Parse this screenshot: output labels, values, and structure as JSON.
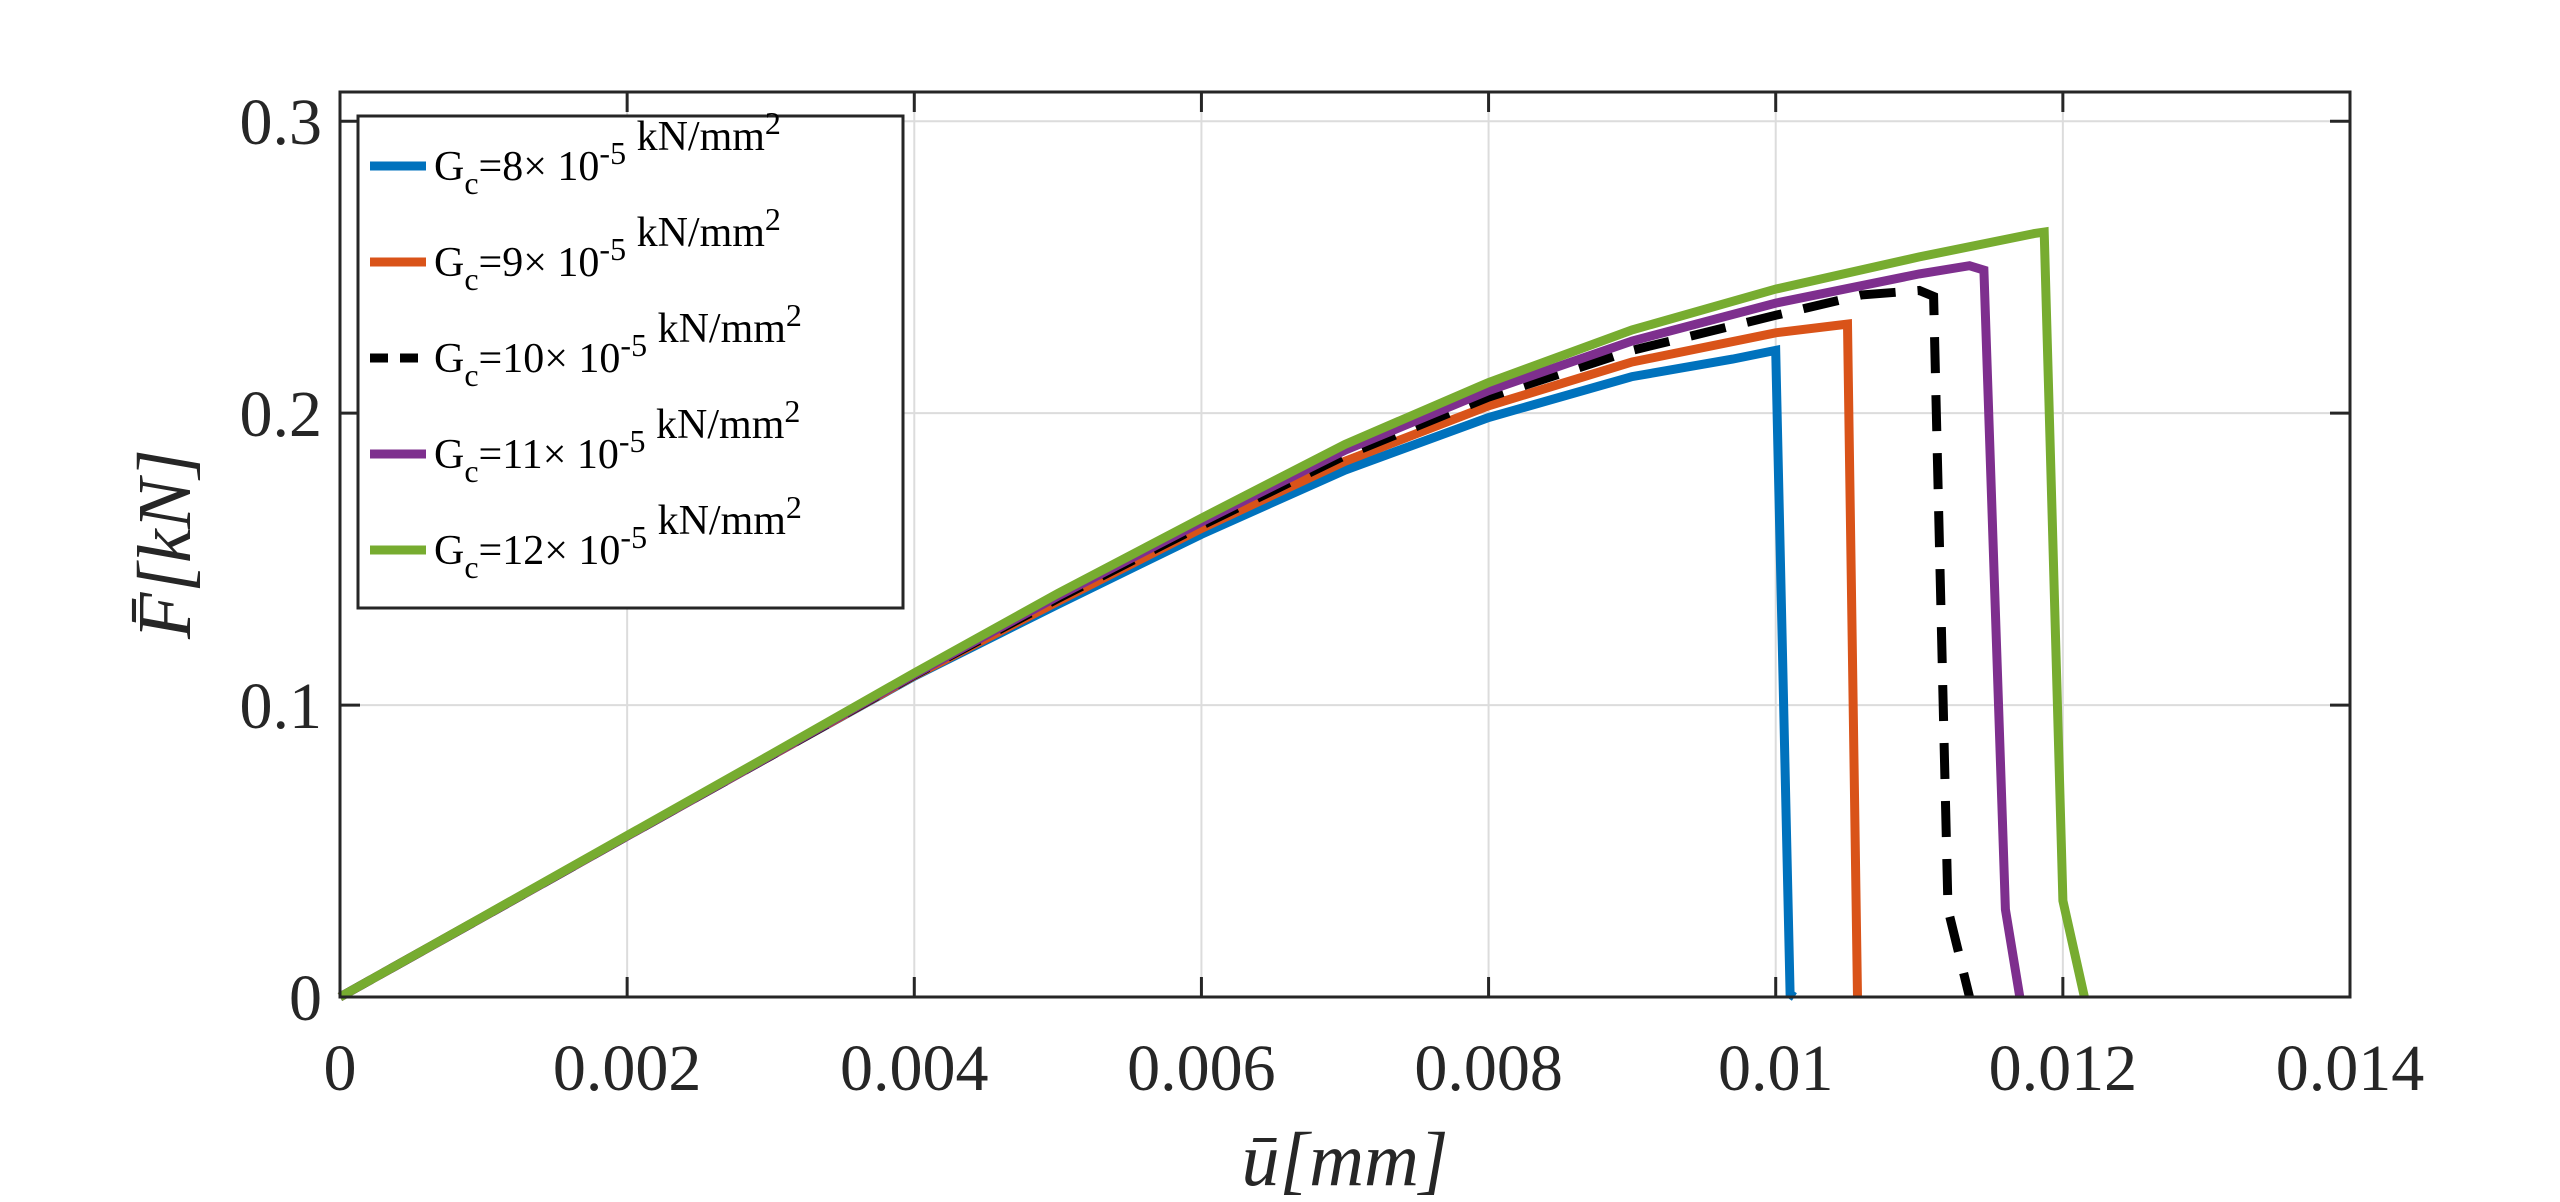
{
  "chart_data": {
    "type": "line",
    "title": "",
    "xlabel": "ū[mm]",
    "ylabel": "F̄[kN]",
    "xlim": [
      0,
      0.014
    ],
    "ylim": [
      0,
      0.31
    ],
    "xticks": [
      0,
      0.002,
      0.004,
      0.006,
      0.008,
      0.01,
      0.012,
      0.014
    ],
    "xtick_labels": [
      "0",
      "0.002",
      "0.004",
      "0.006",
      "0.008",
      "0.01",
      "0.012",
      "0.014"
    ],
    "yticks": [
      0,
      0.1,
      0.2,
      0.3
    ],
    "ytick_labels": [
      "0",
      "0.1",
      "0.2",
      "0.3"
    ],
    "grid": true,
    "legend_position": "top-left",
    "series": [
      {
        "name": "Gc=8× 10-5 kN/mm2",
        "legend": {
          "base": "G",
          "sub": "c",
          "coef": "=8",
          "times": "× 10",
          "exp": "-5",
          "unit": " kN/mm",
          "unit_exp": "2"
        },
        "color": "#0072BD",
        "dash": "solid",
        "x": [
          0,
          0.001,
          0.002,
          0.003,
          0.004,
          0.005,
          0.006,
          0.007,
          0.008,
          0.009,
          0.0097,
          0.01,
          0.0101,
          0.01013
        ],
        "y": [
          0,
          0.0275,
          0.0551,
          0.0826,
          0.1099,
          0.1345,
          0.1585,
          0.1805,
          0.1985,
          0.2125,
          0.2185,
          0.2215,
          0.001,
          0.0
        ]
      },
      {
        "name": "Gc=9× 10-5 kN/mm2",
        "legend": {
          "base": "G",
          "sub": "c",
          "coef": "=9",
          "times": "× 10",
          "exp": "-5",
          "unit": " kN/mm",
          "unit_exp": "2"
        },
        "color": "#D95319",
        "dash": "solid",
        "x": [
          0,
          0.001,
          0.002,
          0.003,
          0.004,
          0.005,
          0.006,
          0.007,
          0.008,
          0.009,
          0.01,
          0.0105,
          0.01057
        ],
        "y": [
          0,
          0.0275,
          0.0551,
          0.0826,
          0.1101,
          0.1355,
          0.1605,
          0.1835,
          0.2025,
          0.2175,
          0.2275,
          0.2305,
          0.0
        ]
      },
      {
        "name": "Gc=10× 10-5 kN/mm2",
        "legend": {
          "base": "G",
          "sub": "c",
          "coef": "=10",
          "times": "× 10",
          "exp": "-5",
          "unit": " kN/mm",
          "unit_exp": "2"
        },
        "color": "#000000",
        "dash": "dashed",
        "x": [
          0,
          0.001,
          0.002,
          0.003,
          0.004,
          0.005,
          0.006,
          0.007,
          0.008,
          0.009,
          0.01,
          0.0106,
          0.011,
          0.0111,
          0.0112,
          0.01135
        ],
        "y": [
          0,
          0.0275,
          0.0551,
          0.0826,
          0.1103,
          0.1365,
          0.1615,
          0.1855,
          0.2055,
          0.2215,
          0.2335,
          0.2405,
          0.242,
          0.24,
          0.03,
          0.0
        ]
      },
      {
        "name": "Gc=11× 10-5 kN/mm2",
        "legend": {
          "base": "G",
          "sub": "c",
          "coef": "=11",
          "times": "× 10",
          "exp": "-5",
          "unit": " kN/mm",
          "unit_exp": "2"
        },
        "color": "#7E2F8E",
        "dash": "solid",
        "x": [
          0,
          0.001,
          0.002,
          0.003,
          0.004,
          0.005,
          0.006,
          0.007,
          0.008,
          0.009,
          0.01,
          0.011,
          0.01135,
          0.01145,
          0.0116,
          0.0117
        ],
        "y": [
          0,
          0.0275,
          0.0551,
          0.0827,
          0.1105,
          0.1373,
          0.1627,
          0.1873,
          0.2077,
          0.2247,
          0.2377,
          0.2477,
          0.2505,
          0.249,
          0.03,
          0.0
        ]
      },
      {
        "name": "Gc=12× 10-5 kN/mm2",
        "legend": {
          "base": "G",
          "sub": "c",
          "coef": "=12",
          "times": "× 10",
          "exp": "-5",
          "unit": " kN/mm",
          "unit_exp": "2"
        },
        "color": "#77AC30",
        "dash": "solid",
        "x": [
          0,
          0.001,
          0.002,
          0.003,
          0.004,
          0.005,
          0.006,
          0.007,
          0.008,
          0.009,
          0.01,
          0.011,
          0.0118,
          0.01187,
          0.012,
          0.01215
        ],
        "y": [
          0,
          0.0276,
          0.0553,
          0.083,
          0.111,
          0.1382,
          0.164,
          0.1893,
          0.2105,
          0.2285,
          0.2425,
          0.2535,
          0.2615,
          0.262,
          0.033,
          0.0
        ]
      }
    ]
  }
}
